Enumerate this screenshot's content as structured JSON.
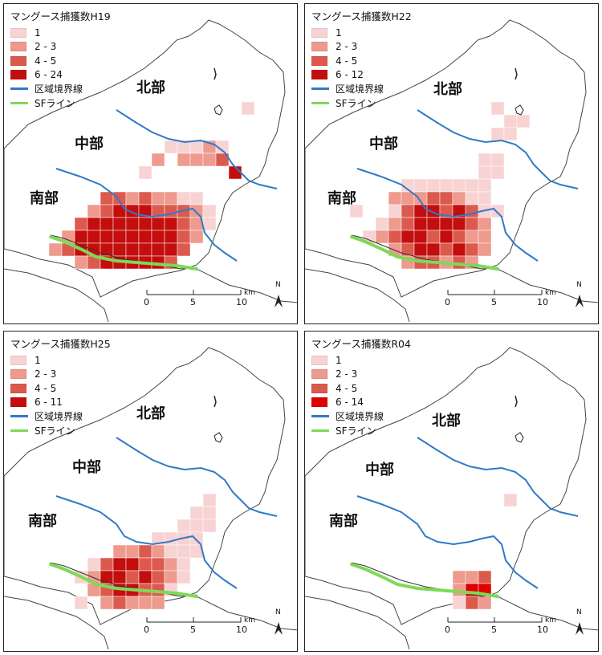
{
  "colors": {
    "bin1": "#f8d3d3",
    "bin2": "#ee9a8e",
    "bin3": "#dc5a4d",
    "bin4": "#c40d0d",
    "boundary": "#2f7ac8",
    "sf_line": "#7ed957",
    "outline": "#444444"
  },
  "regions": {
    "north": "北部",
    "central": "中部",
    "south": "南部"
  },
  "scale": {
    "t0": "0",
    "t5": "5",
    "t10": "10",
    "unit": "km"
  },
  "north_arrow": "N",
  "panels": [
    {
      "title": "マングース捕獲数H19",
      "legend": [
        {
          "label": "1",
          "color": "#f8d3d3"
        },
        {
          "label": "2 - 3",
          "color": "#ee9a8e"
        },
        {
          "label": "4 - 5",
          "color": "#dc5a4d"
        },
        {
          "label": "6 - 24",
          "color": "#c40d0d"
        }
      ],
      "boundary_label": "区域境界線",
      "sf_label": "SFライン"
    },
    {
      "title": "マングース捕獲数H22",
      "legend": [
        {
          "label": "1",
          "color": "#f8d3d3"
        },
        {
          "label": "2 - 3",
          "color": "#ee9a8e"
        },
        {
          "label": "4 - 5",
          "color": "#dc5a4d"
        },
        {
          "label": "6 - 12",
          "color": "#c40d0d"
        }
      ],
      "boundary_label": "区域境界線",
      "sf_label": "SFライン"
    },
    {
      "title": "マングース捕獲数H25",
      "legend": [
        {
          "label": "1",
          "color": "#f8d3d3"
        },
        {
          "label": "2 - 3",
          "color": "#ee9a8e"
        },
        {
          "label": "4 - 5",
          "color": "#dc5a4d"
        },
        {
          "label": "6 - 11",
          "color": "#c40d0d"
        }
      ],
      "boundary_label": "区域境界線",
      "sf_label": "SFライン"
    },
    {
      "title": "マングース捕獲数R04",
      "legend": [
        {
          "label": "1",
          "color": "#f8d3d3"
        },
        {
          "label": "2 - 3",
          "color": "#ee9a8e"
        },
        {
          "label": "4 - 5",
          "color": "#dc5a4d"
        },
        {
          "label": "6 - 14",
          "color": "#e00000"
        }
      ],
      "boundary_label": "区域境界線",
      "sf_label": "SFライン"
    }
  ]
}
